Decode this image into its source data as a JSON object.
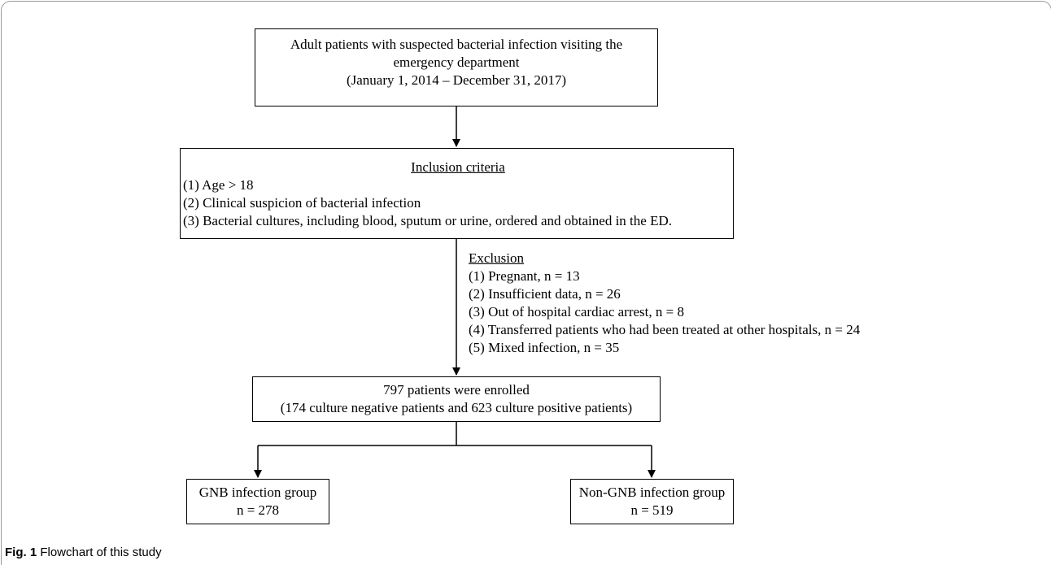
{
  "flowchart": {
    "start_box": {
      "lines": [
        "Adult patients with suspected bacterial infection visiting the",
        "emergency department",
        "(January 1, 2014 – December 31, 2017)"
      ]
    },
    "inclusion_box": {
      "heading": "Inclusion criteria",
      "items": [
        "(1) Age > 18",
        "(2) Clinical suspicion of bacterial infection",
        "(3) Bacterial cultures, including blood, sputum or urine, ordered and obtained in the ED."
      ]
    },
    "exclusion": {
      "heading": "Exclusion",
      "items": [
        "(1) Pregnant, n = 13",
        "(2) Insufficient data, n = 26",
        "(3) Out of hospital cardiac arrest, n = 8",
        "(4) Transferred patients who had been treated at other hospitals, n = 24",
        "(5) Mixed infection, n = 35"
      ]
    },
    "enrolled_box": {
      "lines": [
        "797 patients were enrolled",
        "(174 culture negative patients and 623 culture positive patients)"
      ]
    },
    "gnb_box": {
      "lines": [
        "GNB infection group",
        "n = 278"
      ]
    },
    "non_gnb_box": {
      "lines": [
        "Non-GNB infection group",
        "n = 519"
      ]
    }
  },
  "caption": {
    "label": "Fig. 1",
    "text": "Flowchart of this study"
  }
}
